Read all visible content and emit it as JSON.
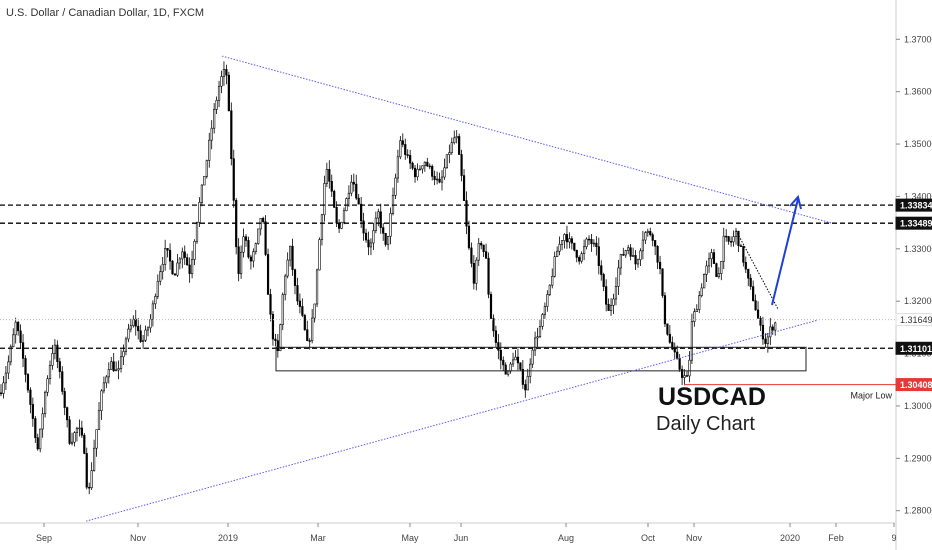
{
  "chart_data": {
    "type": "candlestick",
    "title": "U.S. Dollar / Canadian Dollar, 1D, FXCM",
    "annotation_title": "USDCAD",
    "annotation_subtitle": "Daily Chart",
    "y_axis_side": "right",
    "ylim": [
      1.2725,
      1.3775
    ],
    "y_ticks": [
      "1.28000",
      "1.29000",
      "1.30000",
      "1.31000",
      "1.32000",
      "1.33000",
      "1.34000",
      "1.35000",
      "1.36000",
      "1.37000"
    ],
    "x_ticks": [
      "Sep",
      "Nov",
      "2019",
      "Mar",
      "May",
      "Jun",
      "Aug",
      "Oct",
      "Nov",
      "2020",
      "Feb",
      "9"
    ],
    "price_labels": [
      {
        "text": "1.33834",
        "value": 1.33834,
        "style": "dark"
      },
      {
        "text": "1.33489",
        "value": 1.33489,
        "style": "dark"
      },
      {
        "text": "1.31649",
        "value": 1.31649,
        "style": "light"
      },
      {
        "text": "1.31101",
        "value": 1.31101,
        "style": "dark"
      },
      {
        "text": "1.30408",
        "value": 1.30408,
        "style": "red"
      }
    ],
    "horizontal_levels": [
      {
        "value": 1.33834,
        "style": "dashed",
        "color": "#000000"
      },
      {
        "value": 1.33489,
        "style": "dashed",
        "color": "#000000"
      },
      {
        "value": 1.31101,
        "style": "dashed",
        "color": "#000000"
      },
      {
        "value": 1.31649,
        "style": "dotted",
        "color": "#bdbdbd"
      }
    ],
    "major_low": {
      "label": "Major Low",
      "value": 1.30408,
      "color": "#e53935"
    },
    "support_zone": {
      "top": 1.3112,
      "bottom": 1.3067
    },
    "trendline_color": "#5b5bf0",
    "arrow_color": "#1f3fd6",
    "candle_color": "#000000"
  }
}
